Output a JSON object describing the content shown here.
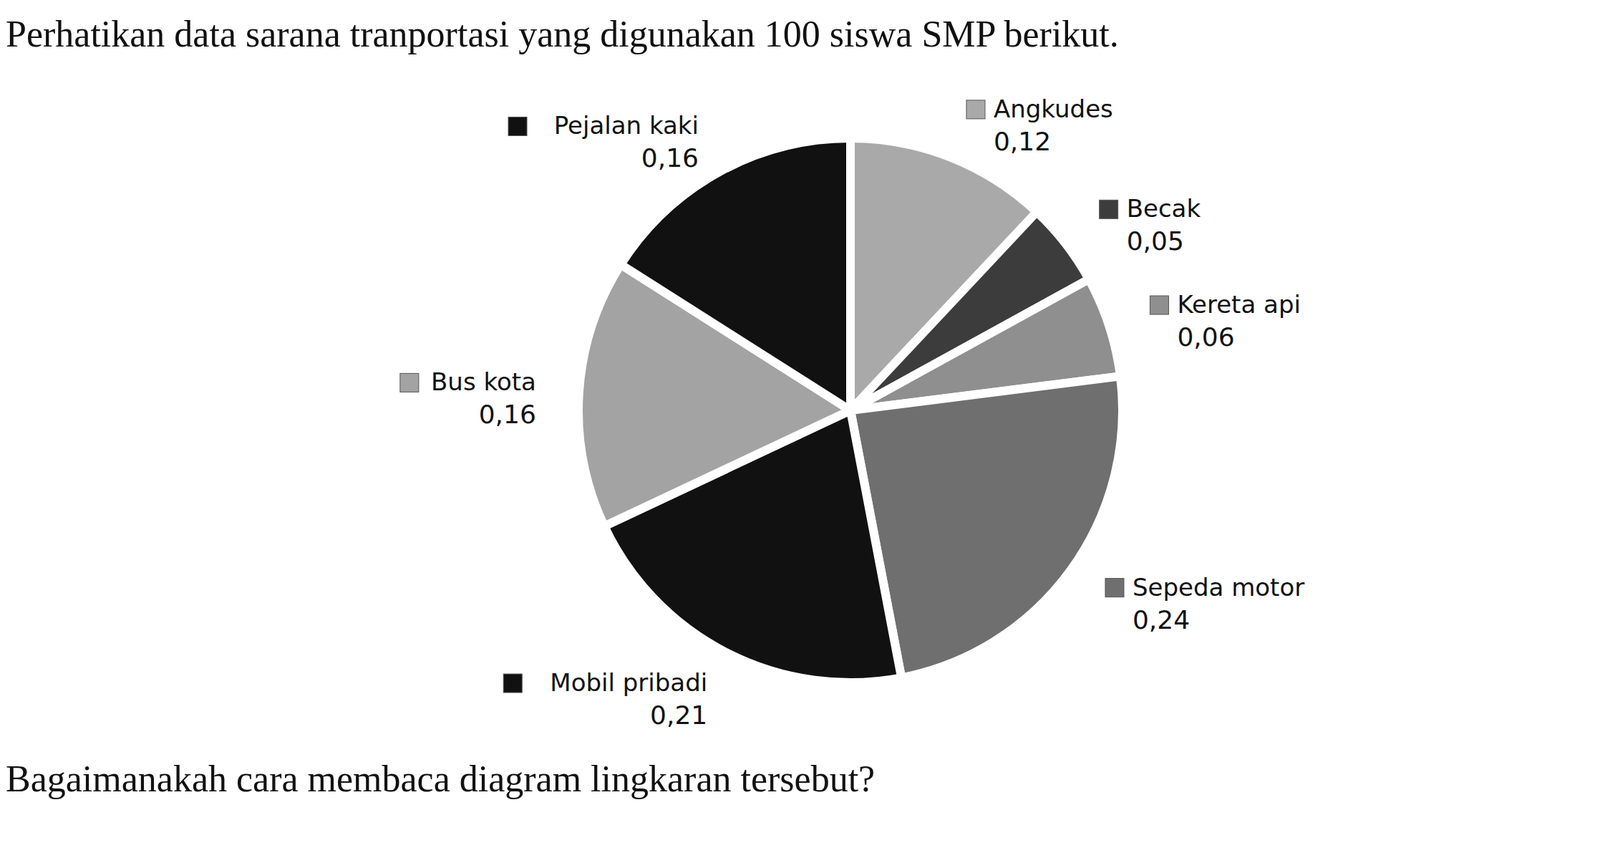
{
  "header": "Perhatikan data sarana tranportasi yang digunakan 100 siswa SMP berikut.",
  "chart_data": {
    "type": "pie",
    "categories": [
      "Angkudes",
      "Becak",
      "Kereta api",
      "Sepeda motor",
      "Mobil pribadi",
      "Bus kota",
      "Pejalan kaki"
    ],
    "values": [
      0.12,
      0.05,
      0.06,
      0.24,
      0.21,
      0.16,
      0.16
    ],
    "value_labels": [
      "0,12",
      "0,05",
      "0,06",
      "0,24",
      "0,21",
      "0,16",
      "0,16"
    ],
    "colors": [
      "#a9a9a9",
      "#3c3c3c",
      "#8f8f8f",
      "#6f6f6f",
      "#111111",
      "#a3a3a3",
      "#111111"
    ],
    "data_labels": true
  },
  "question": "Bagaimanakah cara membaca diagram lingkaran tersebut?"
}
